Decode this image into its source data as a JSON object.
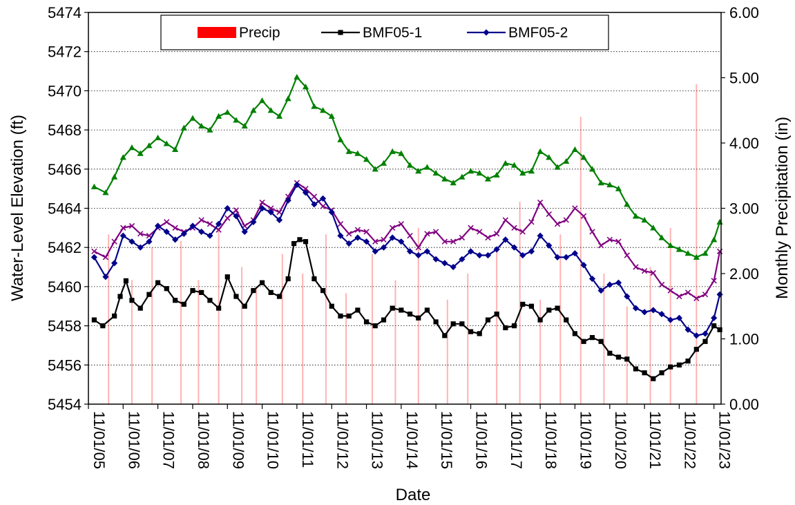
{
  "chart_data": {
    "type": "line",
    "xlabel": "Date",
    "ylabel": "Water-Level Elevation (ft)",
    "y2label": "Monthly Precipitation (in)",
    "ylim": [
      5454,
      5474
    ],
    "y2lim": [
      0,
      6
    ],
    "xlim": [
      "2005-11-01",
      "2024-01-15"
    ],
    "grid": "horizontal dotted",
    "legend_position": "top",
    "y_ticks": [
      "5454",
      "5456",
      "5458",
      "5460",
      "5462",
      "5464",
      "5466",
      "5468",
      "5470",
      "5472",
      "5474"
    ],
    "y2_ticks": [
      "0.00",
      "1.00",
      "2.00",
      "3.00",
      "4.00",
      "5.00",
      "6.00"
    ],
    "x_ticks": [
      "11/01/05",
      "11/01/06",
      "11/01/07",
      "11/01/08",
      "11/01/09",
      "11/01/10",
      "11/01/11",
      "11/01/12",
      "11/01/13",
      "11/01/14",
      "11/01/15",
      "11/01/16",
      "11/01/17",
      "11/01/18",
      "11/01/19",
      "11/01/20",
      "11/01/21",
      "11/01/22",
      "11/01/23"
    ],
    "legend": [
      {
        "name": "Precip",
        "color": "#ff0000",
        "marker": "bar"
      },
      {
        "name": "BMF05-1",
        "color": "#000000",
        "marker": "square"
      },
      {
        "name": "BMF05-2",
        "color": "#00008b",
        "marker": "diamond"
      }
    ],
    "precip": {
      "name": "Precip",
      "color": "#ff0000",
      "x": [
        "2006-06",
        "2007-02",
        "2007-09",
        "2008-07",
        "2009-01",
        "2009-08",
        "2010-04",
        "2010-09",
        "2011-06",
        "2012-01",
        "2012-09",
        "2013-04",
        "2014-01",
        "2014-09",
        "2015-05",
        "2016-03",
        "2016-10",
        "2017-08",
        "2018-04",
        "2018-11",
        "2019-06",
        "2020-01",
        "2020-09",
        "2021-05",
        "2022-01",
        "2022-08",
        "2023-05"
      ],
      "values": [
        2.6,
        1.9,
        2.4,
        2.5,
        1.9,
        2.7,
        2.1,
        1.8,
        2.3,
        2.0,
        2.6,
        1.7,
        2.3,
        1.9,
        2.7,
        1.6,
        2.0,
        2.4,
        3.1,
        1.6,
        2.6,
        4.4,
        2.0,
        1.5,
        2.1,
        2.7,
        4.9
      ]
    },
    "series": [
      {
        "name": "",
        "color": "#008000",
        "marker": "triangle",
        "x": [
          "2006-01",
          "2006-05",
          "2006-08",
          "2006-11",
          "2007-02",
          "2007-05",
          "2007-08",
          "2007-11",
          "2008-02",
          "2008-05",
          "2008-08",
          "2008-11",
          "2009-02",
          "2009-05",
          "2009-08",
          "2009-11",
          "2010-02",
          "2010-05",
          "2010-08",
          "2010-11",
          "2011-02",
          "2011-05",
          "2011-08",
          "2011-11",
          "2012-02",
          "2012-05",
          "2012-08",
          "2012-11",
          "2013-02",
          "2013-05",
          "2013-08",
          "2013-11",
          "2014-02",
          "2014-05",
          "2014-08",
          "2014-11",
          "2015-02",
          "2015-05",
          "2015-08",
          "2015-11",
          "2016-02",
          "2016-05",
          "2016-08",
          "2016-11",
          "2017-02",
          "2017-05",
          "2017-08",
          "2017-11",
          "2018-02",
          "2018-05",
          "2018-08",
          "2018-11",
          "2019-02",
          "2019-05",
          "2019-08",
          "2019-11",
          "2020-02",
          "2020-05",
          "2020-08",
          "2020-11",
          "2021-02",
          "2021-05",
          "2021-08",
          "2021-11",
          "2022-02",
          "2022-05",
          "2022-08",
          "2022-11",
          "2023-02",
          "2023-05",
          "2023-08",
          "2023-11",
          "2024-01"
        ],
        "values": [
          5465.1,
          5464.8,
          5465.6,
          5466.6,
          5467.1,
          5466.8,
          5467.2,
          5467.6,
          5467.3,
          5467.0,
          5468.1,
          5468.6,
          5468.2,
          5468.0,
          5468.7,
          5468.9,
          5468.5,
          5468.2,
          5469.0,
          5469.5,
          5469.0,
          5468.7,
          5469.6,
          5470.7,
          5470.2,
          5469.2,
          5469.0,
          5468.7,
          5467.5,
          5466.9,
          5466.8,
          5466.5,
          5466.0,
          5466.3,
          5466.9,
          5466.8,
          5466.2,
          5465.9,
          5466.1,
          5465.8,
          5465.5,
          5465.3,
          5465.6,
          5465.9,
          5465.8,
          5465.5,
          5465.7,
          5466.3,
          5466.2,
          5465.8,
          5465.9,
          5466.9,
          5466.6,
          5466.1,
          5466.4,
          5467.0,
          5466.6,
          5466.0,
          5465.3,
          5465.2,
          5465.0,
          5464.2,
          5463.6,
          5463.4,
          5463.0,
          5462.5,
          5462.1,
          5461.9,
          5461.7,
          5461.5,
          5461.7,
          5462.4,
          5463.3
        ]
      },
      {
        "name": "",
        "color": "#800080",
        "marker": "x",
        "x": [
          "2006-01",
          "2006-05",
          "2006-08",
          "2006-11",
          "2007-02",
          "2007-05",
          "2007-08",
          "2007-11",
          "2008-02",
          "2008-05",
          "2008-08",
          "2008-11",
          "2009-02",
          "2009-05",
          "2009-08",
          "2009-11",
          "2010-02",
          "2010-05",
          "2010-08",
          "2010-11",
          "2011-02",
          "2011-05",
          "2011-08",
          "2011-11",
          "2012-02",
          "2012-05",
          "2012-08",
          "2012-11",
          "2013-02",
          "2013-05",
          "2013-08",
          "2013-11",
          "2014-02",
          "2014-05",
          "2014-08",
          "2014-11",
          "2015-02",
          "2015-05",
          "2015-08",
          "2015-11",
          "2016-02",
          "2016-05",
          "2016-08",
          "2016-11",
          "2017-02",
          "2017-05",
          "2017-08",
          "2017-11",
          "2018-02",
          "2018-05",
          "2018-08",
          "2018-11",
          "2019-02",
          "2019-05",
          "2019-08",
          "2019-11",
          "2020-02",
          "2020-05",
          "2020-08",
          "2020-11",
          "2021-02",
          "2021-05",
          "2021-08",
          "2021-11",
          "2022-02",
          "2022-05",
          "2022-08",
          "2022-11",
          "2023-02",
          "2023-05",
          "2023-08",
          "2023-11",
          "2024-01"
        ],
        "values": [
          5461.8,
          5461.5,
          5462.3,
          5463.0,
          5463.1,
          5462.7,
          5462.6,
          5463.0,
          5463.3,
          5463.0,
          5462.8,
          5463.0,
          5463.4,
          5463.2,
          5462.9,
          5463.5,
          5463.9,
          5463.1,
          5463.4,
          5464.3,
          5464.0,
          5463.8,
          5464.6,
          5465.3,
          5465.0,
          5464.6,
          5464.1,
          5463.9,
          5463.2,
          5462.7,
          5462.9,
          5462.8,
          5462.3,
          5462.4,
          5463.0,
          5463.2,
          5462.6,
          5462.0,
          5462.7,
          5462.8,
          5462.3,
          5462.3,
          5462.5,
          5463.0,
          5462.8,
          5462.5,
          5462.7,
          5463.4,
          5463.0,
          5462.8,
          5463.3,
          5464.3,
          5463.7,
          5463.2,
          5463.4,
          5464.0,
          5463.6,
          5462.8,
          5462.1,
          5462.4,
          5462.3,
          5461.6,
          5461.0,
          5460.8,
          5460.7,
          5460.1,
          5459.8,
          5459.5,
          5459.7,
          5459.4,
          5459.6,
          5460.3,
          5461.8
        ]
      },
      {
        "name": "BMF05-2",
        "color": "#00008b",
        "marker": "diamond",
        "x": [
          "2006-01",
          "2006-05",
          "2006-08",
          "2006-11",
          "2007-02",
          "2007-05",
          "2007-08",
          "2007-11",
          "2008-02",
          "2008-05",
          "2008-08",
          "2008-11",
          "2009-02",
          "2009-05",
          "2009-08",
          "2009-11",
          "2010-02",
          "2010-05",
          "2010-08",
          "2010-11",
          "2011-02",
          "2011-05",
          "2011-08",
          "2011-11",
          "2012-02",
          "2012-05",
          "2012-08",
          "2012-11",
          "2013-02",
          "2013-05",
          "2013-08",
          "2013-11",
          "2014-02",
          "2014-05",
          "2014-08",
          "2014-11",
          "2015-02",
          "2015-05",
          "2015-08",
          "2015-11",
          "2016-02",
          "2016-05",
          "2016-08",
          "2016-11",
          "2017-02",
          "2017-05",
          "2017-08",
          "2017-11",
          "2018-02",
          "2018-05",
          "2018-08",
          "2018-11",
          "2019-02",
          "2019-05",
          "2019-08",
          "2019-11",
          "2020-02",
          "2020-05",
          "2020-08",
          "2020-11",
          "2021-02",
          "2021-05",
          "2021-08",
          "2021-11",
          "2022-02",
          "2022-05",
          "2022-08",
          "2022-11",
          "2023-02",
          "2023-05",
          "2023-08",
          "2023-11",
          "2024-01"
        ],
        "values": [
          5461.5,
          5460.5,
          5461.2,
          5462.6,
          5462.3,
          5462.0,
          5462.3,
          5463.1,
          5462.8,
          5462.4,
          5462.7,
          5463.1,
          5462.8,
          5462.6,
          5463.2,
          5464.0,
          5463.6,
          5462.8,
          5463.3,
          5464.0,
          5463.8,
          5463.4,
          5464.4,
          5465.2,
          5464.8,
          5464.2,
          5464.5,
          5463.8,
          5462.6,
          5462.2,
          5462.5,
          5462.3,
          5461.8,
          5462.0,
          5462.5,
          5462.3,
          5461.8,
          5461.6,
          5461.8,
          5461.4,
          5461.2,
          5461.0,
          5461.4,
          5461.8,
          5461.6,
          5461.6,
          5461.9,
          5462.4,
          5462.0,
          5461.6,
          5461.8,
          5462.6,
          5462.1,
          5461.5,
          5461.5,
          5461.7,
          5461.1,
          5460.4,
          5459.8,
          5460.1,
          5460.2,
          5459.5,
          5458.9,
          5458.7,
          5458.8,
          5458.6,
          5458.3,
          5458.4,
          5457.8,
          5457.5,
          5457.6,
          5458.4,
          5459.6
        ]
      },
      {
        "name": "BMF05-1",
        "color": "#000000",
        "marker": "square",
        "x": [
          "2006-01",
          "2006-04",
          "2006-08",
          "2006-10",
          "2006-12",
          "2007-02",
          "2007-05",
          "2007-08",
          "2007-11",
          "2008-02",
          "2008-05",
          "2008-08",
          "2008-11",
          "2009-02",
          "2009-05",
          "2009-08",
          "2009-11",
          "2010-02",
          "2010-05",
          "2010-08",
          "2010-11",
          "2011-02",
          "2011-05",
          "2011-08",
          "2011-10",
          "2011-12",
          "2012-02",
          "2012-05",
          "2012-08",
          "2012-11",
          "2013-02",
          "2013-05",
          "2013-08",
          "2013-11",
          "2014-02",
          "2014-05",
          "2014-08",
          "2014-11",
          "2015-02",
          "2015-05",
          "2015-08",
          "2015-11",
          "2016-02",
          "2016-05",
          "2016-08",
          "2016-11",
          "2017-02",
          "2017-05",
          "2017-08",
          "2017-11",
          "2018-02",
          "2018-05",
          "2018-08",
          "2018-11",
          "2019-02",
          "2019-05",
          "2019-08",
          "2019-11",
          "2020-02",
          "2020-05",
          "2020-08",
          "2020-11",
          "2021-02",
          "2021-05",
          "2021-08",
          "2021-11",
          "2022-02",
          "2022-05",
          "2022-08",
          "2022-11",
          "2023-02",
          "2023-05",
          "2023-08",
          "2023-11",
          "2024-01"
        ],
        "values": [
          5458.3,
          5458.0,
          5458.5,
          5459.5,
          5460.3,
          5459.3,
          5458.9,
          5459.6,
          5460.2,
          5459.9,
          5459.3,
          5459.1,
          5459.8,
          5459.7,
          5459.3,
          5458.9,
          5460.5,
          5459.5,
          5459.0,
          5459.8,
          5460.2,
          5459.7,
          5459.5,
          5460.4,
          5462.2,
          5462.4,
          5462.3,
          5460.4,
          5459.8,
          5459.0,
          5458.5,
          5458.5,
          5458.8,
          5458.2,
          5458.0,
          5458.3,
          5458.9,
          5458.8,
          5458.6,
          5458.4,
          5458.8,
          5458.2,
          5457.5,
          5458.1,
          5458.1,
          5457.7,
          5457.6,
          5458.3,
          5458.6,
          5457.9,
          5458.0,
          5459.1,
          5459.0,
          5458.3,
          5458.8,
          5458.9,
          5458.3,
          5457.6,
          5457.2,
          5457.4,
          5457.2,
          5456.6,
          5456.4,
          5456.3,
          5455.8,
          5455.6,
          5455.3,
          5455.6,
          5455.9,
          5456.0,
          5456.2,
          5456.8,
          5457.2,
          5458.0,
          5457.8
        ]
      }
    ]
  }
}
